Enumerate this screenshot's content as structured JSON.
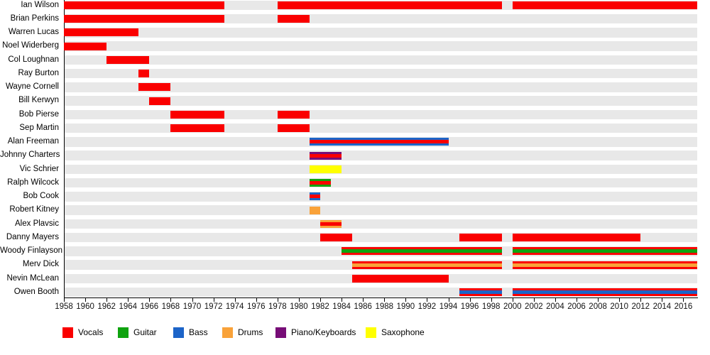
{
  "chart_data": {
    "type": "timeline-gantt",
    "description": "Band members timeline showing each member's tenure and instruments",
    "x_axis": {
      "start": 1958,
      "end": 2017.3,
      "tick_interval": 2,
      "ticks": [
        1958,
        1960,
        1962,
        1964,
        1966,
        1968,
        1970,
        1972,
        1974,
        1976,
        1978,
        1980,
        1982,
        1984,
        1986,
        1988,
        1990,
        1992,
        1994,
        1996,
        1998,
        2000,
        2002,
        2004,
        2006,
        2008,
        2010,
        2012,
        2014,
        2016
      ]
    },
    "row_band_color": "#e8e8e8",
    "axis_color": "#000000",
    "legend": [
      {
        "label": "Vocals",
        "color": "#fa0000"
      },
      {
        "label": "Guitar",
        "color": "#0fa30f"
      },
      {
        "label": "Bass",
        "color": "#1c64c8"
      },
      {
        "label": "Drums",
        "color": "#f9a239"
      },
      {
        "label": "Piano/Keyboards",
        "color": "#770d77"
      },
      {
        "label": "Saxophone",
        "color": "#ffff00"
      }
    ],
    "members": [
      {
        "name": "Ian Wilson",
        "bars": [
          {
            "start": 1958,
            "end": 1973,
            "instruments": [
              "Vocals"
            ]
          },
          {
            "start": 1978,
            "end": 1999,
            "instruments": [
              "Vocals"
            ]
          },
          {
            "start": 2000,
            "end": 2017.3,
            "instruments": [
              "Vocals"
            ]
          }
        ]
      },
      {
        "name": "Brian Perkins",
        "bars": [
          {
            "start": 1958,
            "end": 1973,
            "instruments": [
              "Vocals"
            ]
          },
          {
            "start": 1978,
            "end": 1981,
            "instruments": [
              "Vocals"
            ]
          }
        ]
      },
      {
        "name": "Warren Lucas",
        "bars": [
          {
            "start": 1958,
            "end": 1965,
            "instruments": [
              "Vocals"
            ]
          }
        ]
      },
      {
        "name": "Noel Widerberg",
        "bars": [
          {
            "start": 1958,
            "end": 1962,
            "instruments": [
              "Vocals"
            ]
          }
        ]
      },
      {
        "name": "Col Loughnan",
        "bars": [
          {
            "start": 1962,
            "end": 1966,
            "instruments": [
              "Vocals"
            ]
          }
        ]
      },
      {
        "name": "Ray Burton",
        "bars": [
          {
            "start": 1965,
            "end": 1966,
            "instruments": [
              "Vocals"
            ]
          }
        ]
      },
      {
        "name": "Wayne Cornell",
        "bars": [
          {
            "start": 1965,
            "end": 1968,
            "instruments": [
              "Vocals"
            ]
          }
        ]
      },
      {
        "name": "Bill Kerwyn",
        "bars": [
          {
            "start": 1966,
            "end": 1968,
            "instruments": [
              "Vocals"
            ]
          }
        ]
      },
      {
        "name": "Bob Pierse",
        "bars": [
          {
            "start": 1968,
            "end": 1973,
            "instruments": [
              "Vocals"
            ]
          },
          {
            "start": 1978,
            "end": 1981,
            "instruments": [
              "Vocals"
            ]
          }
        ]
      },
      {
        "name": "Sep Martin",
        "bars": [
          {
            "start": 1968,
            "end": 1973,
            "instruments": [
              "Vocals"
            ]
          },
          {
            "start": 1978,
            "end": 1981,
            "instruments": [
              "Vocals"
            ]
          }
        ]
      },
      {
        "name": "Alan Freeman",
        "bars": [
          {
            "start": 1981,
            "end": 1994,
            "instruments": [
              "Bass",
              "Vocals"
            ]
          }
        ]
      },
      {
        "name": "Johnny Charters",
        "bars": [
          {
            "start": 1981,
            "end": 1984,
            "instruments": [
              "Piano/Keyboards",
              "Vocals"
            ]
          }
        ]
      },
      {
        "name": "Vic Schrier",
        "bars": [
          {
            "start": 1981,
            "end": 1984,
            "instruments": [
              "Saxophone"
            ]
          }
        ]
      },
      {
        "name": "Ralph Wilcock",
        "bars": [
          {
            "start": 1981,
            "end": 1983,
            "instruments": [
              "Guitar",
              "Vocals"
            ]
          }
        ]
      },
      {
        "name": "Bob Cook",
        "bars": [
          {
            "start": 1981,
            "end": 1982,
            "instruments": [
              "Bass",
              "Vocals"
            ]
          }
        ]
      },
      {
        "name": "Robert Kitney",
        "bars": [
          {
            "start": 1981,
            "end": 1982,
            "instruments": [
              "Drums"
            ]
          }
        ]
      },
      {
        "name": "Alex Plavsic",
        "bars": [
          {
            "start": 1982,
            "end": 1984,
            "instruments": [
              "Drums",
              "Vocals"
            ]
          }
        ]
      },
      {
        "name": "Danny Mayers",
        "bars": [
          {
            "start": 1982,
            "end": 1985,
            "instruments": [
              "Vocals"
            ]
          },
          {
            "start": 1995,
            "end": 1999,
            "instruments": [
              "Vocals"
            ]
          },
          {
            "start": 2000,
            "end": 2012,
            "instruments": [
              "Vocals"
            ]
          }
        ]
      },
      {
        "name": "Woody Finlayson",
        "bars": [
          {
            "start": 1984,
            "end": 1999,
            "instruments": [
              "Vocals",
              "Guitar"
            ]
          },
          {
            "start": 2000,
            "end": 2017.3,
            "instruments": [
              "Vocals",
              "Guitar"
            ]
          }
        ]
      },
      {
        "name": "Merv Dick",
        "bars": [
          {
            "start": 1985,
            "end": 1999,
            "instruments": [
              "Vocals",
              "Drums"
            ]
          },
          {
            "start": 2000,
            "end": 2017.3,
            "instruments": [
              "Vocals",
              "Drums"
            ]
          }
        ]
      },
      {
        "name": "Nevin McLean",
        "bars": [
          {
            "start": 1985,
            "end": 1994,
            "instruments": [
              "Vocals"
            ]
          }
        ]
      },
      {
        "name": "Owen Booth",
        "bars": [
          {
            "start": 1995,
            "end": 1999,
            "instruments": [
              "Vocals",
              "Bass"
            ]
          },
          {
            "start": 2000,
            "end": 2017.3,
            "instruments": [
              "Vocals",
              "Bass"
            ]
          }
        ]
      }
    ]
  }
}
